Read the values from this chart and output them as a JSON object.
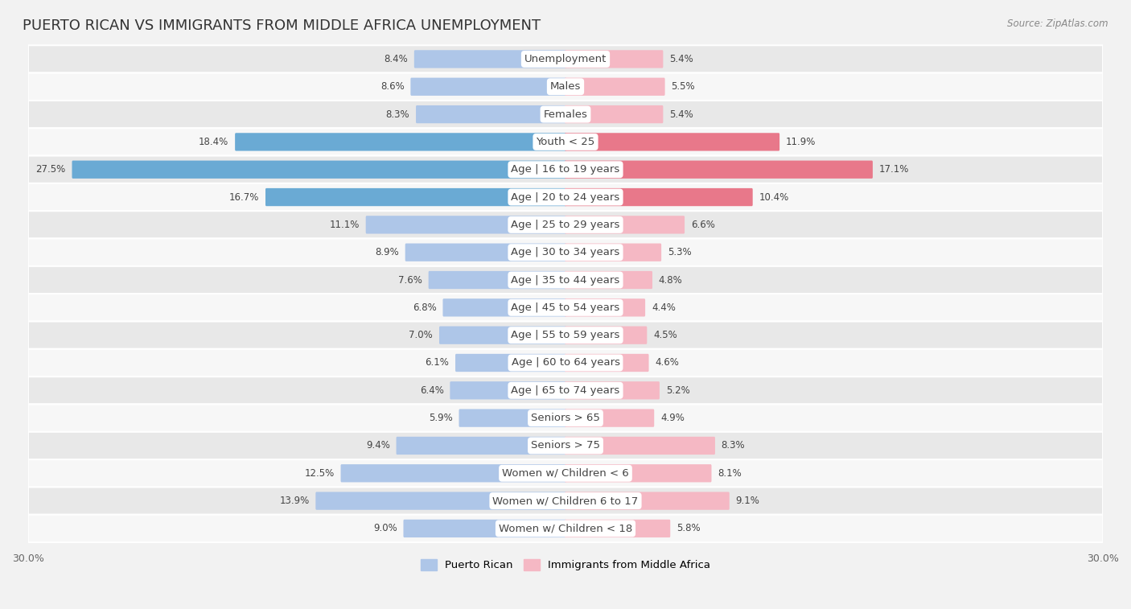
{
  "title": "PUERTO RICAN VS IMMIGRANTS FROM MIDDLE AFRICA UNEMPLOYMENT",
  "source": "Source: ZipAtlas.com",
  "categories": [
    "Unemployment",
    "Males",
    "Females",
    "Youth < 25",
    "Age | 16 to 19 years",
    "Age | 20 to 24 years",
    "Age | 25 to 29 years",
    "Age | 30 to 34 years",
    "Age | 35 to 44 years",
    "Age | 45 to 54 years",
    "Age | 55 to 59 years",
    "Age | 60 to 64 years",
    "Age | 65 to 74 years",
    "Seniors > 65",
    "Seniors > 75",
    "Women w/ Children < 6",
    "Women w/ Children 6 to 17",
    "Women w/ Children < 18"
  ],
  "puerto_rican": [
    8.4,
    8.6,
    8.3,
    18.4,
    27.5,
    16.7,
    11.1,
    8.9,
    7.6,
    6.8,
    7.0,
    6.1,
    6.4,
    5.9,
    9.4,
    12.5,
    13.9,
    9.0
  ],
  "middle_africa": [
    5.4,
    5.5,
    5.4,
    11.9,
    17.1,
    10.4,
    6.6,
    5.3,
    4.8,
    4.4,
    4.5,
    4.6,
    5.2,
    4.9,
    8.3,
    8.1,
    9.1,
    5.8
  ],
  "puerto_rican_color_light": "#aec6e8",
  "puerto_rican_color_dark": "#6aaad4",
  "middle_africa_color_light": "#f5b8c4",
  "middle_africa_color_dark": "#e8788a",
  "background_color": "#f2f2f2",
  "row_bg_light": "#f7f7f7",
  "row_bg_dark": "#e8e8e8",
  "axis_limit": 30.0,
  "legend_label_left": "Puerto Rican",
  "legend_label_right": "Immigrants from Middle Africa",
  "title_fontsize": 13,
  "label_fontsize": 9.5,
  "value_fontsize": 8.5,
  "pr_highlight_threshold": 15.0,
  "ma_highlight_threshold": 10.0
}
